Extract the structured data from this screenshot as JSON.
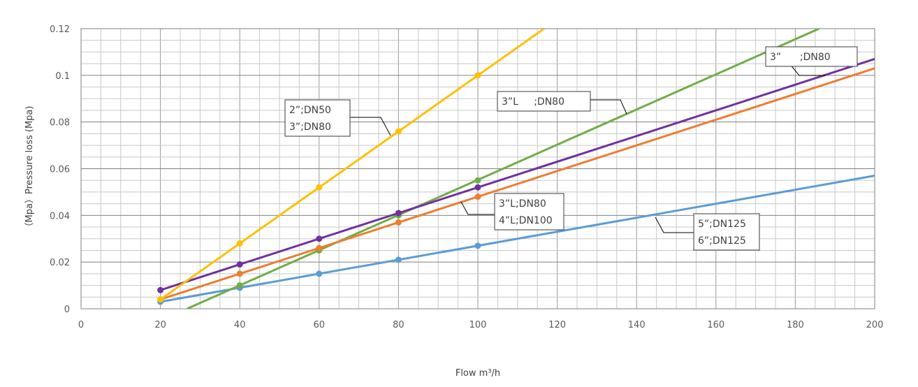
{
  "chart_data": {
    "type": "line",
    "title": "",
    "xlabel": "Flow m³/h",
    "ylabel": "（Mpa）Pressure loss (Mpa)",
    "xlim": [
      0,
      200
    ],
    "ylim": [
      0,
      0.12
    ],
    "x_ticks": [
      "0",
      "20",
      "40",
      "60",
      "80",
      "100",
      "120",
      "140",
      "160",
      "180",
      "200"
    ],
    "y_ticks": [
      "0",
      "0.02",
      "0.04",
      "0.06",
      "0.08",
      "0.1",
      "0.12"
    ],
    "grid": true,
    "series": [
      {
        "color": "#5B9BD5",
        "points": [
          [
            20,
            0.003
          ],
          [
            40,
            0.009
          ],
          [
            60,
            0.015
          ],
          [
            80,
            0.021
          ],
          [
            100,
            0.027
          ]
        ],
        "line": [
          [
            20,
            0.003
          ],
          [
            200,
            0.057
          ]
        ]
      },
      {
        "color": "#70AD47",
        "points": [
          [
            40,
            0.01
          ],
          [
            60,
            0.025
          ],
          [
            80,
            0.04
          ],
          [
            100,
            0.055
          ]
        ],
        "line": [
          [
            26.7,
            0.0
          ],
          [
            186,
            0.12
          ]
        ]
      },
      {
        "color": "#ED7D31",
        "points": [
          [
            20,
            0.004
          ],
          [
            40,
            0.015
          ],
          [
            60,
            0.026
          ],
          [
            80,
            0.037
          ],
          [
            100,
            0.048
          ]
        ],
        "line": [
          [
            20,
            0.004
          ],
          [
            200,
            0.103
          ]
        ]
      },
      {
        "color": "#7030A0",
        "points": [
          [
            20,
            0.008
          ],
          [
            40,
            0.019
          ],
          [
            60,
            0.03
          ],
          [
            80,
            0.041
          ],
          [
            100,
            0.052
          ]
        ],
        "line": [
          [
            20,
            0.008
          ],
          [
            200,
            0.107
          ]
        ]
      },
      {
        "color": "#FFC000",
        "points": [
          [
            20,
            0.004
          ],
          [
            40,
            0.028
          ],
          [
            60,
            0.052
          ],
          [
            80,
            0.076
          ],
          [
            100,
            0.1
          ]
        ],
        "line": [
          [
            20,
            0.004
          ],
          [
            116.7,
            0.12
          ]
        ]
      }
    ],
    "annotations": [
      {
        "lines": [
          "2”;DN50",
          "3”;DN80"
        ]
      },
      {
        "lines": [
          "3”L     ;DN80"
        ]
      },
      {
        "lines": [
          "3”      ;DN80"
        ]
      },
      {
        "lines": [
          "3”L;DN80",
          "4”L;DN100"
        ]
      },
      {
        "lines": [
          "5”;DN125",
          "6”;DN125"
        ]
      }
    ]
  }
}
